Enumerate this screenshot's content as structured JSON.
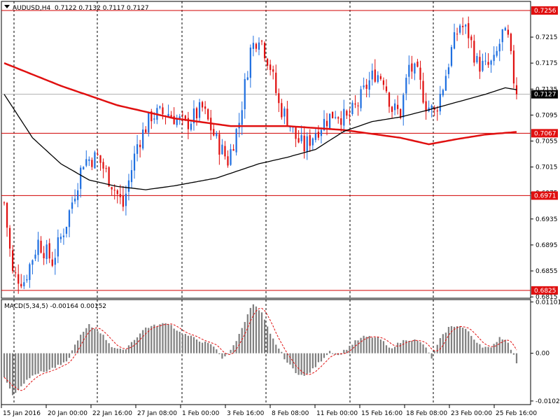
{
  "colors": {
    "background": "#ffffff",
    "frame": "#000000",
    "bull": "#1f6fe0",
    "bear": "#e01010",
    "hline": "#d00000",
    "ma_slow": "#e01010",
    "ma_fast": "#000000",
    "macd_bars": "#808080",
    "macd_signal": "#e01010",
    "price_marker_bg": "#000000",
    "level_marker_bg": "#e01010"
  },
  "chart_data": [
    {
      "type": "candlestick",
      "header": {
        "symbol": "AUDUSD,H4",
        "ohlc": "0.7122 0.7132 0.7117 0.7127"
      },
      "ylim": [
        0.6813,
        0.727
      ],
      "y_ticks": [
        "0.7215",
        "0.7175",
        "0.7135",
        "0.7095",
        "0.7055",
        "0.7015",
        "0.6975",
        "0.6935",
        "0.6895",
        "0.6855",
        "0.6815"
      ],
      "current_price": "0.7127",
      "levels": [
        "0.7256",
        "0.7067",
        "0.6971",
        "0.6825"
      ],
      "x_ticks": [
        "15 Jan 2016",
        "20 Jan 00:00",
        "22 Jan 16:00",
        "27 Jan 08:00",
        "1 Feb 00:00",
        "3 Feb 16:00",
        "8 Feb 08:00",
        "11 Feb 00:00",
        "15 Feb 16:00",
        "18 Feb 08:00",
        "23 Feb 00:00",
        "25 Feb 16:00"
      ],
      "anchors": [
        [
          0,
          0.696
        ],
        [
          3,
          0.685
        ],
        [
          7,
          0.684
        ],
        [
          12,
          0.69
        ],
        [
          17,
          0.687
        ],
        [
          22,
          0.693
        ],
        [
          28,
          0.7025
        ],
        [
          33,
          0.703
        ],
        [
          38,
          0.699
        ],
        [
          42,
          0.6955
        ],
        [
          47,
          0.705
        ],
        [
          52,
          0.7095
        ],
        [
          58,
          0.7098
        ],
        [
          64,
          0.708
        ],
        [
          70,
          0.7105
        ],
        [
          75,
          0.7055
        ],
        [
          79,
          0.7025
        ],
        [
          83,
          0.7085
        ],
        [
          87,
          0.7195
        ],
        [
          90,
          0.722
        ],
        [
          94,
          0.717
        ],
        [
          97,
          0.711
        ],
        [
          100,
          0.709
        ],
        [
          103,
          0.706
        ],
        [
          106,
          0.7045
        ],
        [
          110,
          0.707
        ],
        [
          113,
          0.7085
        ],
        [
          117,
          0.71
        ],
        [
          121,
          0.7088
        ],
        [
          125,
          0.7112
        ],
        [
          128,
          0.714
        ],
        [
          131,
          0.716
        ],
        [
          134,
          0.7152
        ],
        [
          137,
          0.7105
        ],
        [
          140,
          0.7098
        ],
        [
          143,
          0.717
        ],
        [
          146,
          0.7155
        ],
        [
          149,
          0.7112
        ],
        [
          152,
          0.7098
        ],
        [
          155,
          0.714
        ],
        [
          158,
          0.7195
        ],
        [
          161,
          0.7235
        ],
        [
          164,
          0.722
        ],
        [
          167,
          0.7175
        ],
        [
          170,
          0.7168
        ],
        [
          173,
          0.7175
        ],
        [
          176,
          0.722
        ],
        [
          178,
          0.721
        ],
        [
          180,
          0.715
        ],
        [
          181,
          0.7127
        ]
      ],
      "ma_slow": [
        [
          0,
          0.7175
        ],
        [
          20,
          0.714
        ],
        [
          40,
          0.711
        ],
        [
          60,
          0.709
        ],
        [
          80,
          0.7078
        ],
        [
          100,
          0.7078
        ],
        [
          120,
          0.7072
        ],
        [
          140,
          0.706
        ],
        [
          150,
          0.705
        ],
        [
          160,
          0.7058
        ],
        [
          170,
          0.7065
        ],
        [
          181,
          0.7069
        ]
      ],
      "ma_fast": [
        [
          0,
          0.7127
        ],
        [
          10,
          0.706
        ],
        [
          20,
          0.702
        ],
        [
          30,
          0.6995
        ],
        [
          40,
          0.6985
        ],
        [
          50,
          0.698
        ],
        [
          60,
          0.6986
        ],
        [
          75,
          0.6998
        ],
        [
          90,
          0.702
        ],
        [
          100,
          0.703
        ],
        [
          110,
          0.7042
        ],
        [
          120,
          0.707
        ],
        [
          130,
          0.7085
        ],
        [
          140,
          0.7092
        ],
        [
          150,
          0.7103
        ],
        [
          160,
          0.7115
        ],
        [
          170,
          0.7127
        ],
        [
          177,
          0.7137
        ],
        [
          181,
          0.7134
        ]
      ]
    },
    {
      "type": "macd",
      "label": "MACD(5,34,5) -0.00164 0.00152",
      "ylim": [
        -0.011,
        0.0115
      ],
      "y_ticks": [
        "0.01101",
        "0.00",
        "-0.01023"
      ],
      "hist_anchors": [
        [
          0,
          -0.005
        ],
        [
          3,
          -0.009
        ],
        [
          6,
          -0.007
        ],
        [
          10,
          -0.0045
        ],
        [
          14,
          -0.004
        ],
        [
          18,
          -0.003
        ],
        [
          22,
          -0.002
        ],
        [
          26,
          0.003
        ],
        [
          30,
          0.006
        ],
        [
          34,
          0.0045
        ],
        [
          38,
          0.0015
        ],
        [
          42,
          0.0005
        ],
        [
          46,
          0.003
        ],
        [
          50,
          0.0055
        ],
        [
          54,
          0.006
        ],
        [
          58,
          0.0065
        ],
        [
          62,
          0.0045
        ],
        [
          66,
          0.0035
        ],
        [
          70,
          0.0025
        ],
        [
          74,
          0.0015
        ],
        [
          77,
          -0.001
        ],
        [
          80,
          0.0005
        ],
        [
          83,
          0.004
        ],
        [
          86,
          0.0085
        ],
        [
          88,
          0.0105
        ],
        [
          91,
          0.0085
        ],
        [
          94,
          0.004
        ],
        [
          97,
          0.001
        ],
        [
          100,
          -0.002
        ],
        [
          103,
          -0.004
        ],
        [
          106,
          -0.005
        ],
        [
          109,
          -0.0035
        ],
        [
          112,
          -0.0015
        ],
        [
          115,
          0.0005
        ],
        [
          118,
          -0.0005
        ],
        [
          121,
          0.001
        ],
        [
          124,
          0.0025
        ],
        [
          127,
          0.0035
        ],
        [
          130,
          0.0035
        ],
        [
          133,
          0.003
        ],
        [
          136,
          0.001
        ],
        [
          139,
          0.002
        ],
        [
          142,
          0.003
        ],
        [
          145,
          0.0028
        ],
        [
          148,
          0.002
        ],
        [
          151,
          -0.001
        ],
        [
          154,
          0.003
        ],
        [
          157,
          0.0055
        ],
        [
          160,
          0.006
        ],
        [
          163,
          0.0052
        ],
        [
          166,
          0.003
        ],
        [
          169,
          0.0015
        ],
        [
          172,
          0.001
        ],
        [
          175,
          0.0035
        ],
        [
          178,
          0.0025
        ],
        [
          181,
          -0.002
        ]
      ]
    }
  ]
}
